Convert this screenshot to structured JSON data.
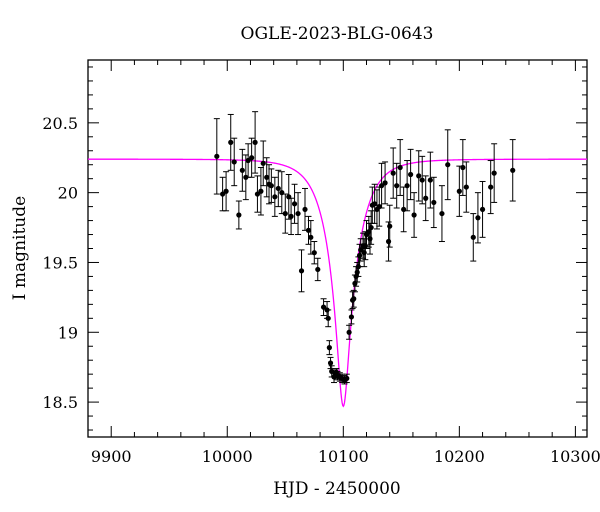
{
  "chart_data": {
    "type": "scatter",
    "title": "OGLE-2023-BLG-0643",
    "xlabel": "HJD - 2450000",
    "ylabel": "I magnitude",
    "xlim": [
      9880,
      10310
    ],
    "ylim": [
      20.95,
      18.25
    ],
    "y_inverted": true,
    "grid": false,
    "x_major_ticks": [
      9900,
      10000,
      10100,
      10200,
      10300
    ],
    "x_minor_step": 20,
    "y_major_ticks": [
      18.5,
      19,
      19.5,
      20,
      20.5
    ],
    "y_minor_step": 0.1,
    "x_tick_labels": [
      "9900",
      "10000",
      "10100",
      "10200",
      "10300"
    ],
    "y_tick_labels": [
      "18.5",
      "19",
      "19.5",
      "20",
      "20.5"
    ],
    "series": [
      {
        "kind": "points_with_errorbars",
        "color": "#000000",
        "x": [
          9991,
          9996,
          9999,
          10003,
          10006,
          10010,
          10013,
          10016,
          10018,
          10021,
          10024,
          10026,
          10029,
          10031,
          10034,
          10036,
          10038,
          10041,
          10044,
          10047,
          10050,
          10053,
          10055,
          10058,
          10061,
          10064,
          10067,
          10070,
          10072,
          10075,
          10078,
          10083,
          10086,
          10087,
          10088,
          10089,
          10090,
          10092,
          10093,
          10094,
          10095,
          10097,
          10099,
          10101,
          10103,
          10105,
          10107,
          10108,
          10109,
          10110,
          10111,
          10112,
          10113,
          10114,
          10115,
          10117,
          10118,
          10119,
          10120,
          10122,
          10123,
          10124,
          10125,
          10127,
          10129,
          10131,
          10133,
          10136,
          10139,
          10140,
          10143,
          10146,
          10149,
          10152,
          10155,
          10158,
          10161,
          10165,
          10168,
          10171,
          10175,
          10178,
          10185,
          10190,
          10200,
          10203,
          10206,
          10212,
          10216,
          10220,
          10227,
          10230,
          10246
        ],
        "y": [
          20.26,
          19.99,
          20.01,
          20.36,
          20.22,
          19.84,
          20.16,
          20.11,
          20.23,
          20.25,
          20.36,
          19.99,
          20.01,
          20.21,
          20.11,
          20.06,
          20.05,
          19.97,
          20.03,
          20.0,
          19.85,
          19.97,
          19.83,
          19.92,
          19.85,
          19.44,
          19.88,
          19.73,
          19.68,
          19.57,
          19.45,
          19.18,
          19.16,
          19.1,
          18.89,
          18.78,
          18.72,
          18.68,
          18.7,
          18.71,
          18.69,
          18.68,
          18.67,
          18.66,
          18.67,
          19.0,
          19.11,
          19.23,
          19.24,
          19.35,
          19.4,
          19.43,
          19.47,
          19.55,
          19.59,
          19.62,
          19.57,
          19.62,
          19.7,
          19.72,
          19.67,
          19.75,
          19.91,
          19.92,
          19.88,
          19.9,
          20.05,
          20.07,
          19.65,
          19.76,
          20.14,
          20.05,
          20.18,
          19.88,
          20.05,
          20.13,
          19.84,
          20.12,
          20.09,
          19.96,
          20.09,
          19.93,
          19.85,
          20.2,
          20.01,
          20.18,
          20.04,
          19.68,
          19.82,
          19.88,
          20.04,
          20.14,
          20.16
        ],
        "err": [
          0.27,
          0.12,
          0.14,
          0.2,
          0.17,
          0.1,
          0.15,
          0.16,
          0.12,
          0.14,
          0.22,
          0.13,
          0.17,
          0.16,
          0.14,
          0.14,
          0.12,
          0.14,
          0.13,
          0.15,
          0.14,
          0.16,
          0.13,
          0.14,
          0.15,
          0.15,
          0.15,
          0.1,
          0.12,
          0.08,
          0.08,
          0.06,
          0.06,
          0.06,
          0.05,
          0.04,
          0.04,
          0.04,
          0.03,
          0.03,
          0.03,
          0.03,
          0.03,
          0.03,
          0.03,
          0.05,
          0.05,
          0.06,
          0.06,
          0.06,
          0.07,
          0.07,
          0.07,
          0.08,
          0.08,
          0.09,
          0.1,
          0.1,
          0.1,
          0.11,
          0.11,
          0.12,
          0.13,
          0.14,
          0.14,
          0.14,
          0.16,
          0.15,
          0.14,
          0.15,
          0.18,
          0.16,
          0.2,
          0.16,
          0.18,
          0.18,
          0.16,
          0.18,
          0.17,
          0.16,
          0.2,
          0.18,
          0.2,
          0.25,
          0.18,
          0.2,
          0.18,
          0.17,
          0.18,
          0.2,
          0.19,
          0.21,
          0.22
        ]
      },
      {
        "kind": "model_curve",
        "color": "#ff00ff",
        "t0": 10100,
        "peak_mag": 18.47,
        "baseline_mag": 20.24,
        "half_width": 12.5
      }
    ]
  }
}
